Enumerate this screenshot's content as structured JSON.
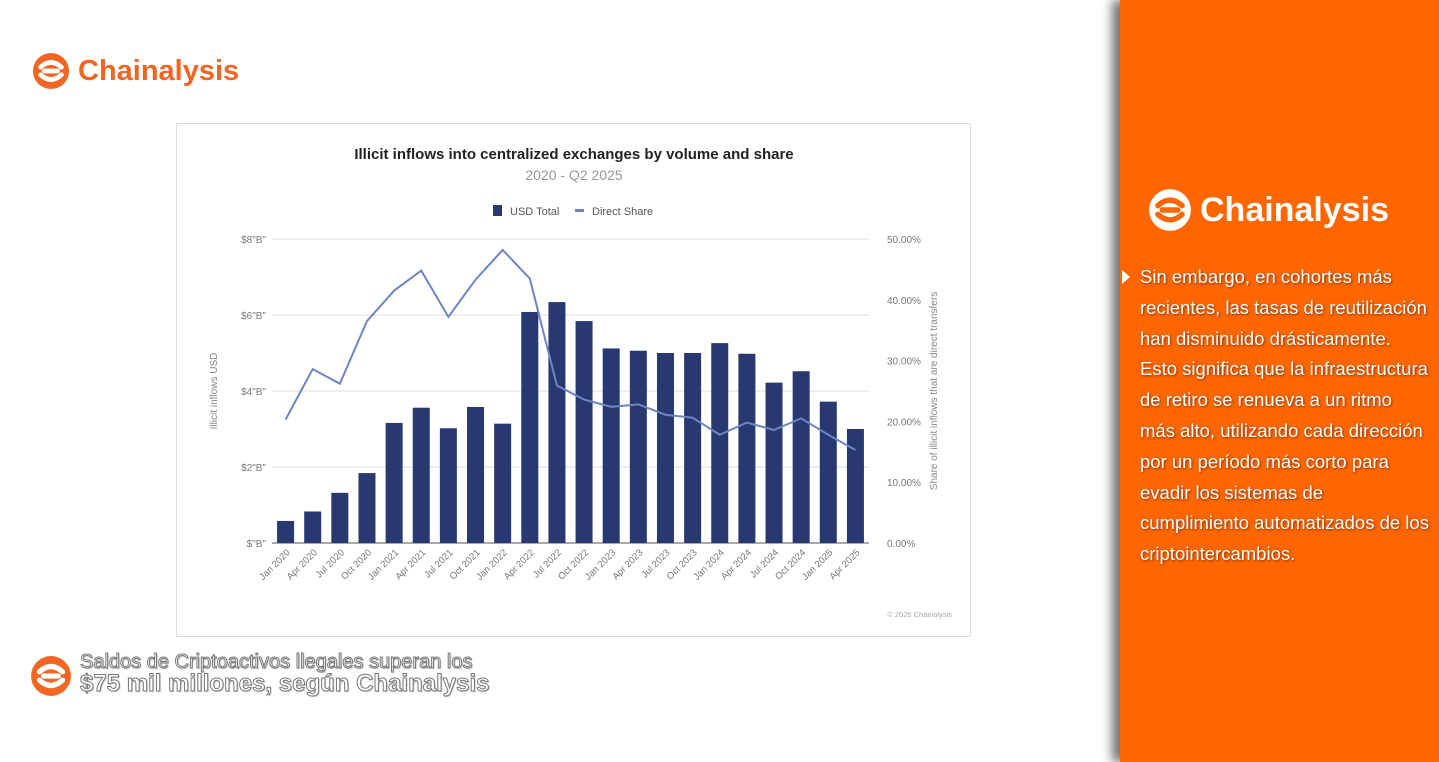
{
  "brand": {
    "name": "Chainalysis",
    "color": "#f26522",
    "panel_color": "#ff6600"
  },
  "panel": {
    "text": "Sin embargo, en cohortes más recientes, las tasas de reutilización han disminuido drásticamente. Esto significa que la infraestructura de retiro se renueva a un ritmo más alto, utilizando cada dirección por un período más corto para evadir los sistemas de cumplimiento automatizados de los criptointercambios."
  },
  "headline": {
    "line1": "Saldos de Criptoactivos llegales superan los",
    "line2": "$75 mil millones, según Chainalysis"
  },
  "chart_data": {
    "type": "bar",
    "title": "Illicit inflows into centralized exchanges by volume and share",
    "subtitle": "2020 - Q2 2025",
    "categories": [
      "Jan 2020",
      "Apr 2020",
      "Jul 2020",
      "Oct 2020",
      "Jan 2021",
      "Apr 2021",
      "Jul 2021",
      "Oct 2021",
      "Jan 2022",
      "Apr 2022",
      "Jul 2022",
      "Oct 2022",
      "Jan 2023",
      "Apr 2023",
      "Jul 2023",
      "Oct 2023",
      "Jan 2024",
      "Apr 2024",
      "Jul 2024",
      "Oct 2024",
      "Jan 2025",
      "Apr 2025"
    ],
    "series": [
      {
        "name": "USD Total",
        "type": "bar",
        "axis": "left",
        "color": "#283870",
        "values": [
          0.58,
          0.83,
          1.32,
          1.84,
          3.16,
          3.56,
          3.02,
          3.58,
          3.14,
          6.08,
          6.34,
          5.84,
          5.12,
          5.06,
          5.0,
          5.0,
          5.26,
          4.98,
          4.22,
          4.52,
          3.72,
          3.0
        ]
      },
      {
        "name": "Direct Share",
        "type": "line",
        "axis": "right",
        "color": "#6f84c2",
        "values": [
          20.3,
          28.6,
          26.2,
          36.5,
          41.5,
          44.8,
          37.2,
          43.3,
          48.2,
          43.5,
          25.9,
          23.6,
          22.4,
          22.8,
          21.1,
          20.6,
          17.8,
          19.8,
          18.6,
          20.5,
          17.8,
          15.3
        ]
      }
    ],
    "ylabel": "Illicit inflows USD",
    "y2label": "Share of illicit inflows that are direct transfers",
    "ylim": [
      0,
      8
    ],
    "y2lim": [
      0,
      50
    ],
    "yticks": [
      "$\"B\"",
      "$2\"B\"",
      "$4\"B\"",
      "$6\"B\"",
      "$8\"B\""
    ],
    "y2ticks": [
      "0.00%",
      "10.00%",
      "20.00%",
      "30.00%",
      "40.00%",
      "50.00%"
    ],
    "legend": "top-center",
    "grid": true,
    "credit": "© 2025 Chainalysis"
  }
}
